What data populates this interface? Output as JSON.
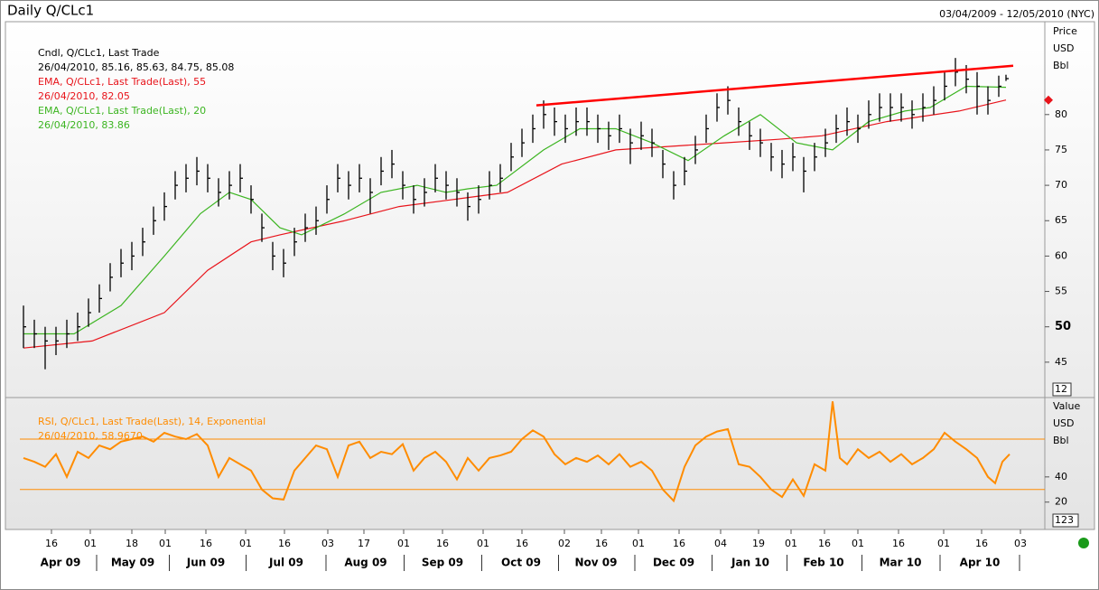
{
  "header": {
    "title": "Daily Q/CLc1",
    "range": "03/04/2009 - 12/05/2010 (NYC)"
  },
  "chart_data": [
    {
      "type": "ohlc",
      "title": "Cndl, Q/CLc1, Last Trade",
      "subtitle": "26/04/2010, 85.16, 85.63, 84.75, 85.08",
      "color": "#000000",
      "x": [
        1,
        4,
        7,
        10,
        13,
        16,
        19,
        22,
        25,
        28,
        31,
        34,
        37,
        40,
        43,
        46,
        49,
        52,
        55,
        58,
        61,
        64,
        67,
        70,
        73,
        76,
        79,
        82,
        85,
        88,
        91,
        94,
        97,
        100,
        103,
        106,
        109,
        112,
        115,
        118,
        121,
        124,
        127,
        130,
        133,
        136,
        139,
        142,
        145,
        148,
        151,
        154,
        157,
        160,
        163,
        166,
        169,
        172,
        175,
        178,
        181,
        184,
        187,
        190,
        193,
        196,
        199,
        202,
        205,
        208,
        211,
        214,
        217,
        220,
        223,
        226,
        229,
        232,
        235,
        238,
        241,
        244,
        247,
        250,
        253,
        256,
        259,
        262,
        265,
        268,
        271,
        273
      ],
      "high": [
        53,
        51,
        50,
        50,
        51,
        52,
        54,
        56,
        59,
        61,
        62,
        64,
        67,
        69,
        72,
        73,
        74,
        73,
        71,
        72,
        73,
        70,
        66,
        62,
        61,
        64,
        66,
        67,
        70,
        73,
        72,
        73,
        71,
        74,
        75,
        72,
        70,
        71,
        73,
        72,
        71,
        69,
        70,
        72,
        73,
        76,
        78,
        80,
        82,
        81,
        80,
        81,
        81,
        80,
        79,
        80,
        78,
        79,
        78,
        75,
        72,
        74,
        77,
        80,
        83,
        84,
        81,
        79,
        78,
        76,
        75,
        76,
        74,
        76,
        78,
        80,
        81,
        80,
        82,
        83,
        83,
        83,
        82,
        83,
        84,
        86,
        88,
        87,
        86,
        84,
        85.5,
        85.63
      ],
      "low": [
        47,
        47,
        44,
        46,
        47,
        48,
        50,
        52,
        55,
        57,
        58,
        60,
        63,
        65,
        68,
        69,
        70,
        69,
        67,
        68,
        69,
        66,
        62,
        58,
        57,
        60,
        62,
        63,
        66,
        69,
        68,
        69,
        66,
        70,
        71,
        68,
        66,
        67,
        69,
        68,
        67,
        65,
        66,
        68,
        69,
        72,
        74,
        76,
        78,
        77,
        76,
        77,
        77,
        76,
        75,
        76,
        73,
        75,
        74,
        71,
        68,
        70,
        73,
        76,
        79,
        80,
        77,
        75,
        74,
        72,
        71,
        72,
        69,
        72,
        74,
        76,
        77,
        76,
        78,
        79,
        79,
        79,
        78,
        79,
        80,
        82,
        84,
        83,
        80,
        80,
        82.5,
        84.75
      ],
      "close": [
        50,
        49,
        48,
        48,
        49,
        50,
        52,
        54,
        57,
        59,
        60,
        62,
        65,
        67,
        70,
        71,
        72,
        71,
        69,
        70,
        71,
        68,
        64,
        60,
        59,
        62,
        64,
        65,
        68,
        71,
        70,
        71,
        69,
        72,
        73,
        70,
        68,
        69,
        71,
        70,
        69,
        67,
        68,
        70,
        71,
        74,
        76,
        78,
        80,
        79,
        78,
        79,
        79,
        78,
        77,
        78,
        76,
        77,
        76,
        73,
        70,
        72,
        75,
        78,
        81,
        82,
        79,
        77,
        76,
        74,
        73,
        74,
        72,
        74,
        76,
        78,
        79,
        78,
        80,
        81,
        81,
        81,
        80,
        81,
        82,
        84,
        86,
        85,
        84,
        82,
        84,
        85.08
      ],
      "series": [
        {
          "name": "EMA, Q/CLc1, Last Trade(Last),  55",
          "last_label": "26/04/2010, 82.05",
          "color": "#e8141b",
          "x": [
            1,
            20,
            40,
            52,
            64,
            72,
            90,
            105,
            120,
            135,
            150,
            165,
            180,
            195,
            210,
            222,
            240,
            260,
            273
          ],
          "values": [
            47,
            48,
            52,
            58,
            62,
            63,
            65,
            67,
            68,
            69,
            73,
            75,
            75.5,
            76,
            76.5,
            77,
            79,
            80.5,
            82.05
          ]
        },
        {
          "name": "EMA, Q/CLc1, Last Trade(Last),  20",
          "last_label": "26/04/2010, 83.86",
          "color": "#3cb521",
          "x": [
            1,
            15,
            28,
            40,
            50,
            58,
            64,
            72,
            78,
            90,
            100,
            110,
            118,
            124,
            132,
            145,
            155,
            165,
            175,
            185,
            195,
            205,
            215,
            225,
            235,
            245,
            252,
            262,
            273
          ],
          "values": [
            49,
            49,
            53,
            60,
            66,
            69,
            68,
            64,
            63,
            66,
            69,
            70,
            69,
            69.5,
            70,
            75,
            78,
            78,
            76,
            73.5,
            77,
            80,
            76,
            75,
            79,
            80.5,
            81,
            84,
            83.86
          ]
        }
      ],
      "trendline": {
        "color": "#ff0000",
        "x": [
          143,
          275
        ],
        "values": [
          81.3,
          86.9
        ]
      },
      "axis_label": [
        "Price",
        "USD",
        "Bbl"
      ],
      "box_label": "12",
      "ylim": [
        40,
        93
      ],
      "yticks": [
        45,
        50,
        55,
        60,
        65,
        70,
        75,
        80
      ],
      "highlight_tick": 50
    },
    {
      "type": "line",
      "axis_label": [
        "Value",
        "USD",
        "Bbl"
      ],
      "box_label": "123",
      "series": [
        {
          "name": "RSI, Q/CLc1, Last Trade(Last), 14, Exponential",
          "last_label": "26/04/2010, 58.9670",
          "color": "#ff8c00",
          "x": [
            1,
            4,
            7,
            10,
            13,
            16,
            19,
            22,
            25,
            28,
            31,
            34,
            37,
            40,
            43,
            46,
            49,
            52,
            55,
            58,
            61,
            64,
            67,
            70,
            73,
            76,
            79,
            82,
            85,
            88,
            91,
            94,
            97,
            100,
            103,
            106,
            109,
            112,
            115,
            118,
            121,
            124,
            127,
            130,
            133,
            136,
            139,
            142,
            145,
            148,
            151,
            154,
            157,
            160,
            163,
            166,
            169,
            172,
            175,
            178,
            181,
            184,
            187,
            190,
            193,
            196,
            199,
            202,
            205,
            208,
            211,
            214,
            217,
            220,
            223,
            225,
            227,
            229,
            232,
            235,
            238,
            241,
            244,
            247,
            250,
            253,
            256,
            259,
            262,
            265,
            268,
            270,
            272,
            274
          ],
          "values": [
            55,
            52,
            48,
            58,
            40,
            60,
            55,
            65,
            62,
            68,
            70,
            72,
            68,
            75,
            72,
            70,
            74,
            65,
            40,
            55,
            50,
            45,
            30,
            23,
            22,
            45,
            55,
            65,
            62,
            40,
            65,
            68,
            55,
            60,
            58,
            66,
            45,
            55,
            60,
            52,
            38,
            55,
            45,
            55,
            57,
            60,
            70,
            77,
            72,
            58,
            50,
            55,
            52,
            57,
            50,
            58,
            48,
            52,
            45,
            30,
            21,
            48,
            65,
            72,
            76,
            78,
            50,
            48,
            40,
            30,
            24,
            38,
            25,
            50,
            45,
            100,
            55,
            50,
            62,
            55,
            60,
            52,
            58,
            50,
            55,
            62,
            75,
            68,
            62,
            55,
            40,
            35,
            52,
            58
          ]
        }
      ],
      "levels": [
        70,
        30
      ],
      "level_color": "#ff8c00",
      "ylim": [
        -1,
        103
      ],
      "yticks": [
        20,
        40
      ]
    }
  ],
  "x_axis": {
    "xlim": [
      0,
      283.75
    ],
    "xticks": [
      {
        "value": 8.75,
        "label": "16"
      },
      {
        "value": 19.5,
        "label": "01"
      },
      {
        "value": 31,
        "label": "18"
      },
      {
        "value": 40.25,
        "label": "01"
      },
      {
        "value": 51.5,
        "label": "16"
      },
      {
        "value": 62.5,
        "label": "01"
      },
      {
        "value": 73.25,
        "label": "16"
      },
      {
        "value": 85.25,
        "label": "03"
      },
      {
        "value": 95.25,
        "label": "17"
      },
      {
        "value": 106.25,
        "label": "01"
      },
      {
        "value": 117,
        "label": "16"
      },
      {
        "value": 128.25,
        "label": "01"
      },
      {
        "value": 139,
        "label": "16"
      },
      {
        "value": 150.75,
        "label": "02"
      },
      {
        "value": 161,
        "label": "16"
      },
      {
        "value": 171.25,
        "label": "01"
      },
      {
        "value": 182.5,
        "label": "16"
      },
      {
        "value": 194,
        "label": "04"
      },
      {
        "value": 204.5,
        "label": "19"
      },
      {
        "value": 213.5,
        "label": "01"
      },
      {
        "value": 222.75,
        "label": "16"
      },
      {
        "value": 232,
        "label": "01"
      },
      {
        "value": 243.25,
        "label": "16"
      },
      {
        "value": 255.75,
        "label": "01"
      },
      {
        "value": 266.25,
        "label": "16"
      },
      {
        "value": 277,
        "label": "03"
      }
    ],
    "months": [
      {
        "value": 11.25,
        "label": "Apr 09"
      },
      {
        "value": 31.25,
        "label": "May 09"
      },
      {
        "value": 51.5,
        "label": "Jun 09"
      },
      {
        "value": 73.75,
        "label": "Jul 09"
      },
      {
        "value": 95.75,
        "label": "Aug 09"
      },
      {
        "value": 117,
        "label": "Sep 09"
      },
      {
        "value": 138.75,
        "label": "Oct 09"
      },
      {
        "value": 159.5,
        "label": "Nov 09"
      },
      {
        "value": 181,
        "label": "Dec 09"
      },
      {
        "value": 202.25,
        "label": "Jan 10"
      },
      {
        "value": 222.5,
        "label": "Feb 10"
      },
      {
        "value": 243.75,
        "label": "Mar 10"
      },
      {
        "value": 265.75,
        "label": "Apr 10"
      }
    ]
  }
}
